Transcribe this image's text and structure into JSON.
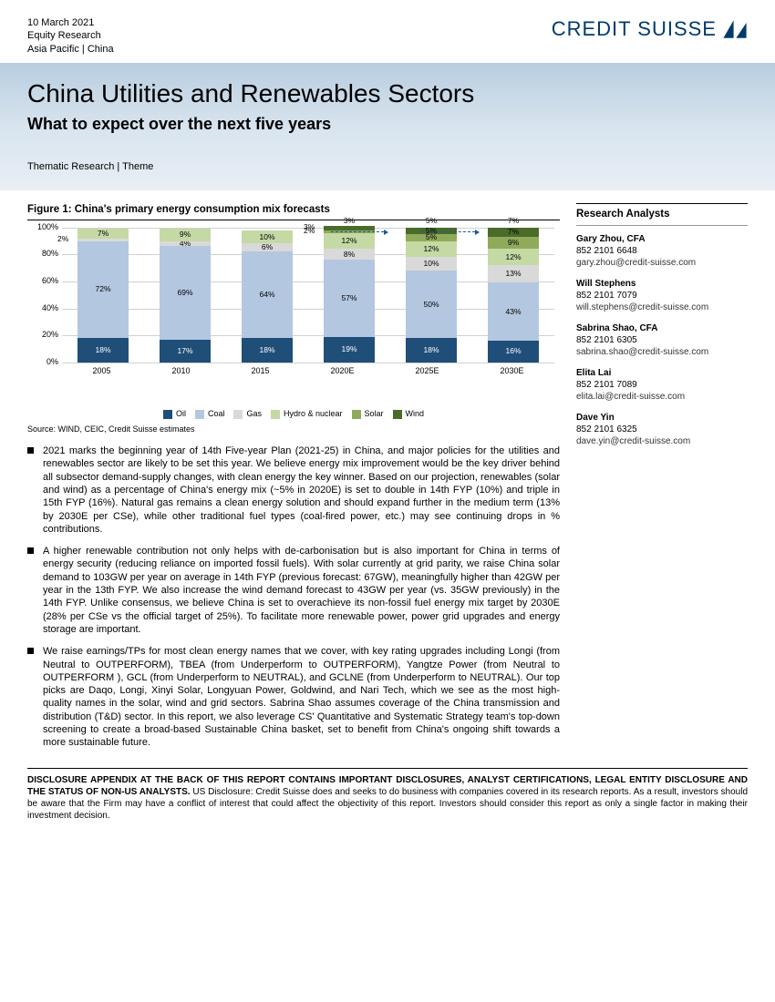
{
  "header": {
    "date": "10 March 2021",
    "dept": "Equity Research",
    "region": "Asia Pacific | China",
    "brand": "CREDIT SUISSE"
  },
  "title": {
    "main": "China Utilities and Renewables Sectors",
    "sub": "What to expect over the next five years",
    "tag": "Thematic Research | Theme"
  },
  "chart": {
    "title": "Figure 1: China's primary energy consumption mix forecasts",
    "type": "stacked_bar",
    "ylim": [
      0,
      100
    ],
    "ytick_step": 20,
    "yticks": [
      "0%",
      "20%",
      "40%",
      "60%",
      "80%",
      "100%"
    ],
    "categories": [
      "2005",
      "2010",
      "2015",
      "2020E",
      "2025E",
      "2030E"
    ],
    "series": [
      "Oil",
      "Coal",
      "Gas",
      "Hydro & nuclear",
      "Solar",
      "Wind"
    ],
    "colors": {
      "Oil": "#1f4e79",
      "Coal": "#b4c7e0",
      "Gas": "#d9d9d9",
      "Hydro & nuclear": "#c5d9a5",
      "Solar": "#8faa5a",
      "Wind": "#4a6b2a"
    },
    "text_colors": {
      "Oil": "#ffffff",
      "Coal": "#000000",
      "Gas": "#000000",
      "Hydro & nuclear": "#000000",
      "Solar": "#000000",
      "Wind": "#000000"
    },
    "grid_color": "#d0d0d0",
    "background_color": "#ffffff",
    "label_fontsize": 9,
    "data": [
      {
        "Oil": 18,
        "Coal": 72,
        "Gas": 2,
        "Hydro & nuclear": 7,
        "Solar": 0,
        "Wind": 0
      },
      {
        "Oil": 17,
        "Coal": 69,
        "Gas": 4,
        "Hydro & nuclear": 9,
        "Solar": 0,
        "Wind": 0
      },
      {
        "Oil": 18,
        "Coal": 64,
        "Gas": 6,
        "Hydro & nuclear": 10,
        "Solar": 0,
        "Wind": 0
      },
      {
        "Oil": 19,
        "Coal": 57,
        "Gas": 8,
        "Hydro & nuclear": 12,
        "Solar": 2,
        "Wind": 3
      },
      {
        "Oil": 18,
        "Coal": 50,
        "Gas": 10,
        "Hydro & nuclear": 12,
        "Solar": 5,
        "Wind": 5
      },
      {
        "Oil": 16,
        "Coal": 43,
        "Gas": 13,
        "Hydro & nuclear": 12,
        "Solar": 9,
        "Wind": 7
      }
    ],
    "segment_labels": [
      {
        "Oil": "18%",
        "Coal": "72%",
        "Gas": "2%",
        "Hydro & nuclear": "7%"
      },
      {
        "Oil": "17%",
        "Coal": "69%",
        "Gas": "4%",
        "Hydro & nuclear": "9%"
      },
      {
        "Oil": "18%",
        "Coal": "64%",
        "Gas": "6%",
        "Hydro & nuclear": "10%"
      },
      {
        "Oil": "19%",
        "Coal": "57%",
        "Gas": "8%",
        "Hydro & nuclear": "12%",
        "Solar": "2%",
        "Wind": "3%"
      },
      {
        "Oil": "18%",
        "Coal": "50%",
        "Gas": "10%",
        "Hydro & nuclear": "12%",
        "Solar": "5%",
        "Wind": "5%"
      },
      {
        "Oil": "16%",
        "Coal": "43%",
        "Gas": "13%",
        "Hydro & nuclear": "12%",
        "Solar": "9%",
        "Wind": "7%"
      }
    ],
    "source": "Source: WIND, CEIC, Credit Suisse estimates"
  },
  "bullets": [
    "2021 marks the beginning year of 14th Five-year Plan (2021-25) in China, and major policies for the utilities and renewables sector are likely to be set this year. We believe energy mix improvement would be the key driver behind all subsector demand-supply changes, with clean energy the key winner. Based on our projection, renewables (solar and wind) as a percentage of China's energy mix (~5% in 2020E) is set to double in 14th FYP (10%) and triple in 15th FYP (16%). Natural gas remains a clean energy solution and should expand further in the medium term (13% by 2030E per CSe), while other traditional fuel types (coal-fired power, etc.) may see continuing drops in % contributions.",
    "A higher renewable contribution not only helps with de-carbonisation but is also important for China in terms of energy security (reducing reliance on imported fossil fuels). With solar currently at grid parity, we raise China solar demand to 103GW per year on average in 14th FYP (previous forecast: 67GW), meaningfully higher than 42GW per year in the 13th FYP. We also increase the wind demand forecast to 43GW per year (vs. 35GW previously) in the 14th FYP. Unlike consensus, we believe China is set to overachieve its non-fossil fuel energy mix target by 2030E (28% per CSe vs the official target of 25%). To facilitate more renewable power, power grid upgrades and energy storage are important.",
    "We raise earnings/TPs for most clean energy names that we cover, with key rating upgrades including Longi (from Neutral to OUTPERFORM), TBEA (from Underperform to OUTPERFORM), Yangtze Power (from Neutral to OUTPERFORM ), GCL (from Underperform to NEUTRAL), and GCLNE (from Underperform to NEUTRAL). Our top picks are Daqo, Longi, Xinyi Solar, Longyuan Power, Goldwind, and Nari Tech, which we see as the most high-quality names in the solar, wind and grid sectors. Sabrina Shao assumes coverage of the China transmission and distribution (T&D) sector. In this report, we also leverage CS' Quantitative and Systematic Strategy team's top-down screening to create a broad-based Sustainable China basket, set to benefit from China's ongoing shift towards a more sustainable future."
  ],
  "analysts": {
    "heading": "Research Analysts",
    "list": [
      {
        "name": "Gary Zhou, CFA",
        "phone": "852 2101 6648",
        "email": "gary.zhou@credit-suisse.com"
      },
      {
        "name": "Will Stephens",
        "phone": "852 2101 7079",
        "email": "will.stephens@credit-suisse.com"
      },
      {
        "name": "Sabrina Shao, CFA",
        "phone": "852  2101 6305",
        "email": "sabrina.shao@credit-suisse.com"
      },
      {
        "name": "Elita Lai",
        "phone": "852 2101 7089",
        "email": "elita.lai@credit-suisse.com"
      },
      {
        "name": "Dave Yin",
        "phone": "852 2101 6325",
        "email": "dave.yin@credit-suisse.com"
      }
    ]
  },
  "disclosure": {
    "bold": "DISCLOSURE APPENDIX AT THE BACK OF THIS REPORT CONTAINS IMPORTANT DISCLOSURES, ANALYST CERTIFICATIONS, LEGAL ENTITY DISCLOSURE AND THE STATUS OF NON-US ANALYSTS.",
    "rest": "  US Disclosure: Credit Suisse does and seeks to do business with companies covered in its research reports. As a result, investors should be aware that the Firm may have a conflict of interest that could affect the objectivity of this report. Investors should consider this report as only a single factor in making their investment decision."
  }
}
